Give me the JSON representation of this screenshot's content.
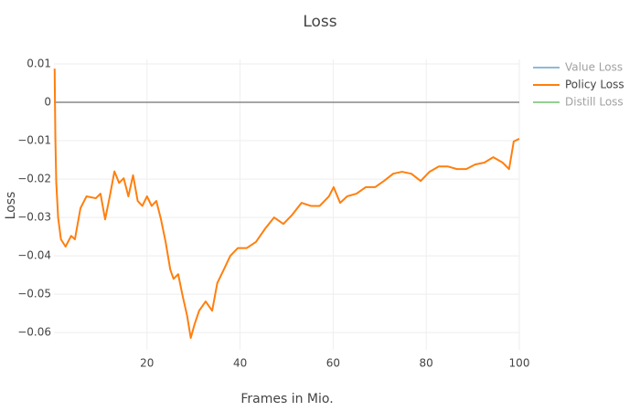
{
  "chart_data": {
    "type": "line",
    "title": "Loss",
    "x_label": "Frames in Mio.",
    "y_label": "Loss",
    "x": [
      0.15,
      0.3,
      0.5,
      0.9,
      1.5,
      2.5,
      3.7,
      4.5,
      5.7,
      7,
      9,
      10,
      11,
      12,
      13,
      14,
      15,
      16,
      17,
      18,
      19,
      20,
      21,
      22,
      23,
      24,
      25,
      25.7,
      26.7,
      27.7,
      28.6,
      29.4,
      30.2,
      31.2,
      32.6,
      34,
      35.1,
      36.5,
      37.9,
      39.5,
      41.4,
      43.4,
      45.4,
      47.3,
      49.3,
      51.2,
      53.2,
      55.2,
      57.1,
      59.1,
      60.1,
      61.5,
      63,
      65,
      67,
      69,
      70.9,
      72.9,
      74.8,
      76.8,
      78.8,
      80.7,
      82.7,
      84.6,
      86.6,
      88.6,
      90.5,
      92.5,
      94.4,
      96.4,
      97.8,
      98.8,
      100
    ],
    "series": [
      {
        "name": "Value Loss",
        "color": "#1f77b4",
        "visible": "legendonly"
      },
      {
        "name": "Policy Loss",
        "color": "#ff7f0e",
        "visible": true,
        "values": [
          0.0088,
          -0.009,
          -0.021,
          -0.03,
          -0.0357,
          -0.0376,
          -0.0348,
          -0.0357,
          -0.0276,
          -0.0245,
          -0.025,
          -0.0238,
          -0.0305,
          -0.0245,
          -0.018,
          -0.021,
          -0.0198,
          -0.0245,
          -0.019,
          -0.0257,
          -0.027,
          -0.0245,
          -0.027,
          -0.0257,
          -0.0305,
          -0.0364,
          -0.0436,
          -0.046,
          -0.0448,
          -0.0507,
          -0.0555,
          -0.0614,
          -0.0579,
          -0.0543,
          -0.0519,
          -0.0543,
          -0.0471,
          -0.0436,
          -0.04,
          -0.038,
          -0.038,
          -0.0364,
          -0.0329,
          -0.03,
          -0.0317,
          -0.0293,
          -0.0262,
          -0.027,
          -0.027,
          -0.0245,
          -0.0221,
          -0.0262,
          -0.0245,
          -0.0238,
          -0.0221,
          -0.0221,
          -0.0205,
          -0.0186,
          -0.0181,
          -0.0186,
          -0.0205,
          -0.0181,
          -0.0167,
          -0.0167,
          -0.0174,
          -0.0174,
          -0.0162,
          -0.0157,
          -0.0143,
          -0.0157,
          -0.0174,
          -0.0102,
          -0.0095
        ]
      },
      {
        "name": "Distill Loss",
        "color": "#2ca02c",
        "visible": "legendonly"
      }
    ],
    "xlim": [
      0,
      100
    ],
    "ylim": [
      -0.0645,
      0.0112
    ],
    "xticks": [
      20,
      40,
      60,
      80,
      100
    ],
    "yticks": [
      0.01,
      0,
      {
        "value": -0.01,
        "label": "−0.01"
      },
      {
        "value": -0.02,
        "label": "−0.02"
      },
      {
        "value": -0.03,
        "label": "−0.03"
      },
      {
        "value": -0.04,
        "label": "−0.04"
      },
      {
        "value": -0.05,
        "label": "−0.05"
      },
      {
        "value": -0.06,
        "label": "−0.06"
      }
    ],
    "grid": true,
    "zeroline": true,
    "legend": "right"
  }
}
